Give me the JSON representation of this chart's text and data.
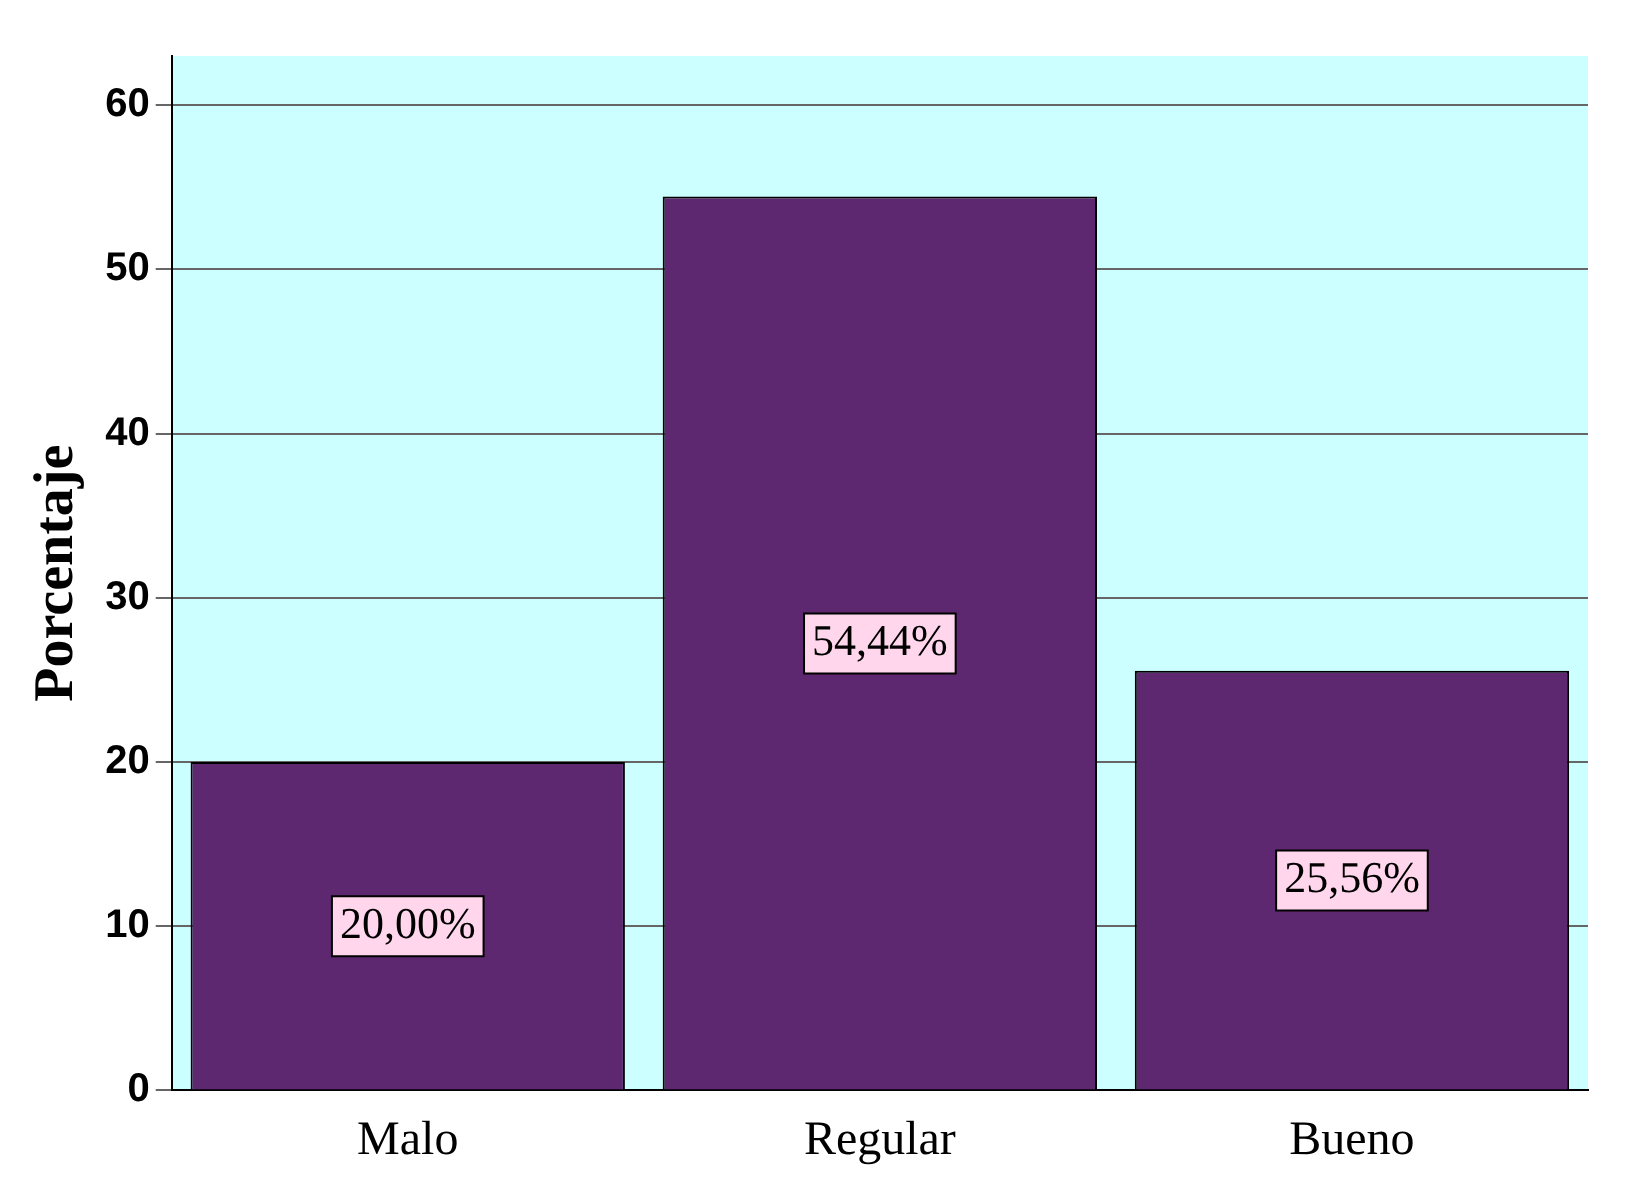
{
  "chart_data": {
    "type": "bar",
    "ylabel": "Porcentaje",
    "categories": [
      "Malo",
      "Regular",
      "Bueno"
    ],
    "values": [
      20,
      54.44,
      25.56
    ],
    "value_labels": [
      "20,00%",
      "54,44%",
      "25,56%"
    ],
    "color": "#5e2870",
    "ylim": [
      0,
      63
    ],
    "yticks": [
      0,
      10,
      20,
      30,
      40,
      50,
      60
    ],
    "grid": "y",
    "legend": false
  }
}
